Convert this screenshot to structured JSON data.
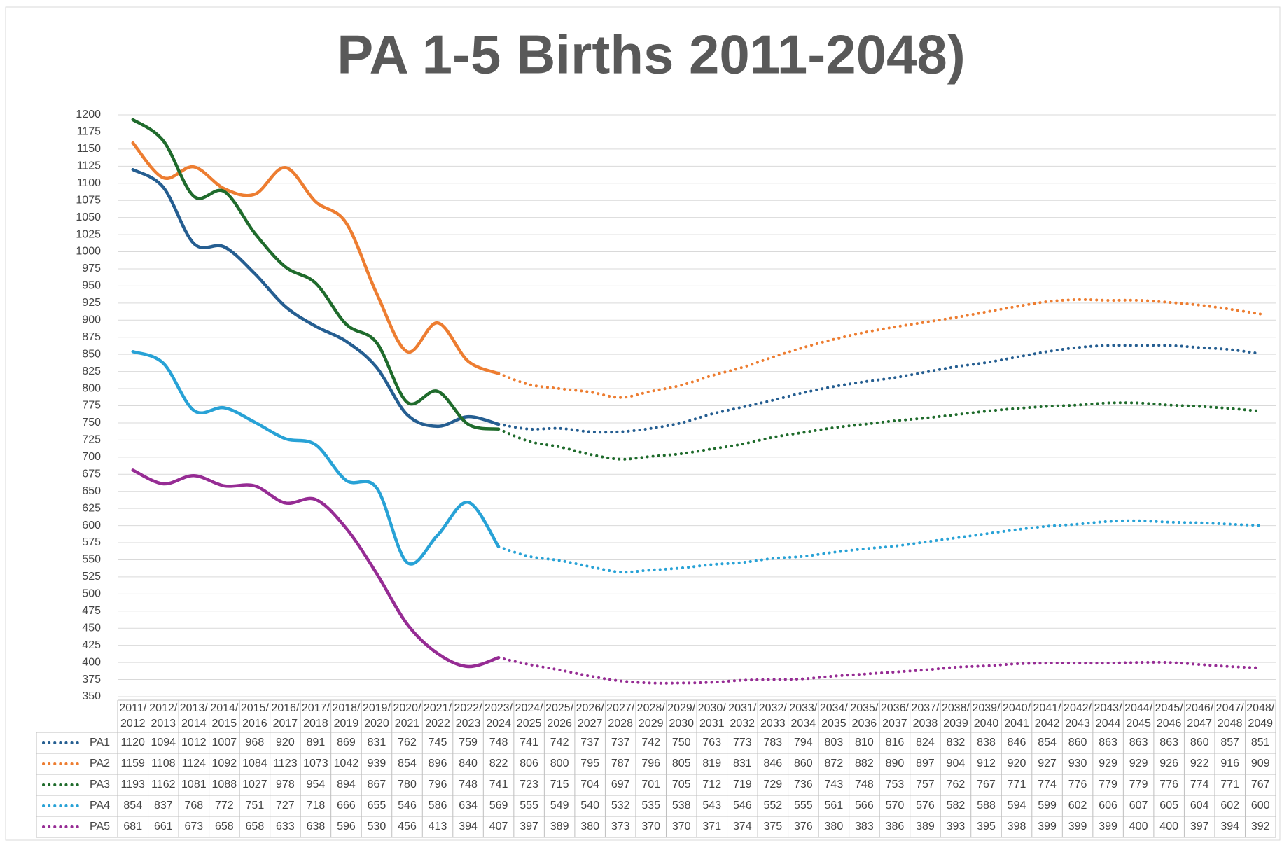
{
  "chart_data": {
    "type": "line",
    "title": "PA 1-5 Births 2011-2048)",
    "categories": [
      "2011/2012",
      "2012/2013",
      "2013/2014",
      "2014/2015",
      "2015/2016",
      "2016/2017",
      "2017/2018",
      "2018/2019",
      "2019/2020",
      "2020/2021",
      "2021/2022",
      "2022/2023",
      "2023/2024",
      "2024/2025",
      "2025/2026",
      "2026/2027",
      "2027/2028",
      "2028/2029",
      "2029/2030",
      "2030/2031",
      "2031/2032",
      "2032/2033",
      "2033/2034",
      "2034/2035",
      "2035/2036",
      "2036/2037",
      "2037/2038",
      "2038/2039",
      "2039/2040",
      "2040/2041",
      "2041/2042",
      "2042/2043",
      "2043/2044",
      "2044/2045",
      "2045/2046",
      "2046/2047",
      "2047/2048",
      "2048/2049"
    ],
    "projection_start": "2023/2024",
    "series": [
      {
        "name": "PA1",
        "color": "#255e91",
        "values": [
          1120,
          1094,
          1012,
          1007,
          968,
          920,
          891,
          869,
          831,
          762,
          745,
          759,
          748,
          741,
          742,
          737,
          737,
          742,
          750,
          763,
          773,
          783,
          794,
          803,
          810,
          816,
          824,
          832,
          838,
          846,
          854,
          860,
          863,
          863,
          863,
          860,
          857,
          851
        ]
      },
      {
        "name": "PA2",
        "color": "#ed7d31",
        "values": [
          1159,
          1108,
          1124,
          1092,
          1084,
          1123,
          1073,
          1042,
          939,
          854,
          896,
          840,
          822,
          806,
          800,
          795,
          787,
          796,
          805,
          819,
          831,
          846,
          860,
          872,
          882,
          890,
          897,
          904,
          912,
          920,
          927,
          930,
          929,
          929,
          926,
          922,
          916,
          909
        ]
      },
      {
        "name": "PA3",
        "color": "#1f6b2c",
        "values": [
          1193,
          1162,
          1081,
          1088,
          1027,
          978,
          954,
          894,
          867,
          780,
          796,
          748,
          741,
          723,
          715,
          704,
          697,
          701,
          705,
          712,
          719,
          729,
          736,
          743,
          748,
          753,
          757,
          762,
          767,
          771,
          774,
          776,
          779,
          779,
          776,
          774,
          771,
          767
        ]
      },
      {
        "name": "PA4",
        "color": "#28a2d6",
        "values": [
          854,
          837,
          768,
          772,
          751,
          727,
          718,
          666,
          655,
          546,
          586,
          634,
          569,
          555,
          549,
          540,
          532,
          535,
          538,
          543,
          546,
          552,
          555,
          561,
          566,
          570,
          576,
          582,
          588,
          594,
          599,
          602,
          606,
          607,
          605,
          604,
          602,
          600
        ]
      },
      {
        "name": "PA5",
        "color": "#962c94",
        "values": [
          681,
          661,
          673,
          658,
          658,
          633,
          638,
          596,
          530,
          456,
          413,
          394,
          407,
          397,
          389,
          380,
          373,
          370,
          370,
          371,
          374,
          375,
          376,
          380,
          383,
          386,
          389,
          393,
          395,
          398,
          399,
          399,
          399,
          400,
          400,
          397,
          394,
          392
        ]
      }
    ],
    "ylim": [
      350,
      1200
    ],
    "yticks": [
      350,
      375,
      400,
      425,
      450,
      475,
      500,
      525,
      550,
      575,
      600,
      625,
      650,
      675,
      700,
      725,
      750,
      775,
      800,
      825,
      850,
      875,
      900,
      925,
      950,
      975,
      1000,
      1025,
      1050,
      1075,
      1100,
      1125,
      1150,
      1175,
      1200
    ],
    "grid": true
  }
}
